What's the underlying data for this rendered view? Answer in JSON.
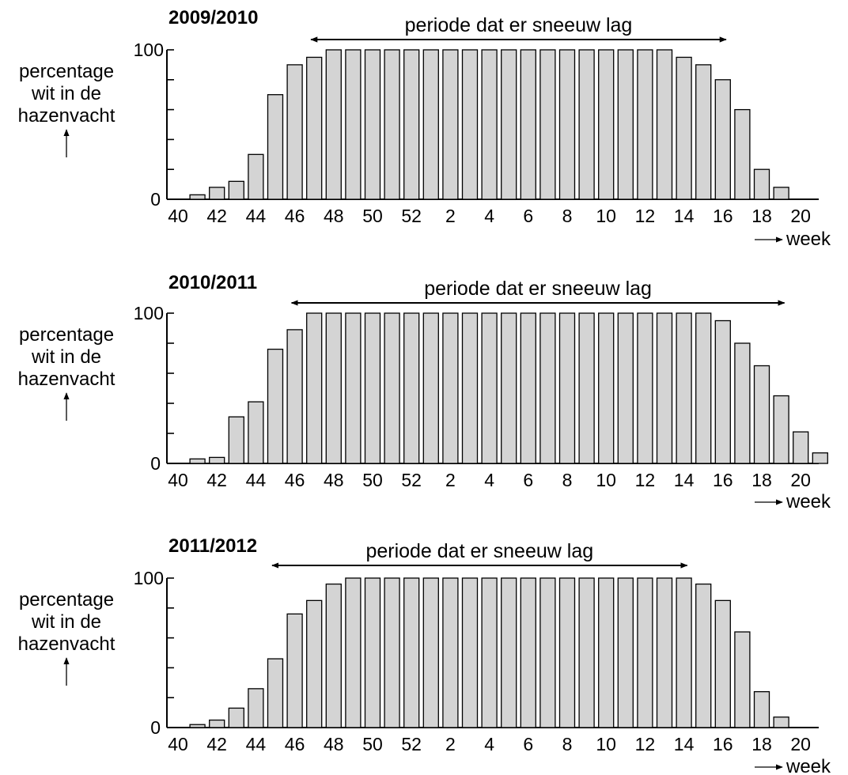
{
  "ylabel_lines": [
    "percentage",
    "wit in de",
    "hazenvacht"
  ],
  "xunit": "week",
  "snow_label": "periode dat er sneeuw lag",
  "x_tick_labels": [
    "40",
    "42",
    "44",
    "46",
    "48",
    "50",
    "52",
    "2",
    "4",
    "6",
    "8",
    "10",
    "12",
    "14",
    "16",
    "18",
    "20"
  ],
  "y_tick_labels": [
    "0",
    "100"
  ],
  "chart_data": [
    {
      "type": "bar",
      "title": "2009/2010",
      "ylim": [
        0,
        100
      ],
      "categories": [
        "41",
        "42",
        "43",
        "44",
        "45",
        "46",
        "47",
        "48",
        "49",
        "50",
        "51",
        "52",
        "1",
        "2",
        "3",
        "4",
        "5",
        "6",
        "7",
        "8",
        "9",
        "10",
        "11",
        "12",
        "13",
        "14",
        "15",
        "16",
        "17",
        "18",
        "19"
      ],
      "values": [
        3,
        8,
        12,
        30,
        70,
        90,
        95,
        100,
        100,
        100,
        100,
        100,
        100,
        100,
        100,
        100,
        100,
        100,
        100,
        100,
        100,
        100,
        100,
        100,
        100,
        95,
        90,
        80,
        60,
        20,
        8
      ],
      "snow_period": {
        "from": "47",
        "to": "16"
      }
    },
    {
      "type": "bar",
      "title": "2010/2011",
      "ylim": [
        0,
        100
      ],
      "categories": [
        "41",
        "42",
        "43",
        "44",
        "45",
        "46",
        "47",
        "48",
        "49",
        "50",
        "51",
        "52",
        "1",
        "2",
        "3",
        "4",
        "5",
        "6",
        "7",
        "8",
        "9",
        "10",
        "11",
        "12",
        "13",
        "14",
        "15",
        "16",
        "17",
        "18",
        "19",
        "20",
        "21"
      ],
      "values": [
        3,
        4,
        31,
        41,
        76,
        89,
        100,
        100,
        100,
        100,
        100,
        100,
        100,
        100,
        100,
        100,
        100,
        100,
        100,
        100,
        100,
        100,
        100,
        100,
        100,
        100,
        100,
        95,
        80,
        65,
        45,
        21,
        7
      ],
      "snow_period": {
        "from": "46",
        "to": "19"
      }
    },
    {
      "type": "bar",
      "title": "2011/2012",
      "ylim": [
        0,
        100
      ],
      "categories": [
        "41",
        "42",
        "43",
        "44",
        "45",
        "46",
        "47",
        "48",
        "49",
        "50",
        "51",
        "52",
        "1",
        "2",
        "3",
        "4",
        "5",
        "6",
        "7",
        "8",
        "9",
        "10",
        "11",
        "12",
        "13",
        "14",
        "15",
        "16",
        "17",
        "18",
        "19"
      ],
      "values": [
        2,
        5,
        13,
        26,
        46,
        76,
        85,
        96,
        100,
        100,
        100,
        100,
        100,
        100,
        100,
        100,
        100,
        100,
        100,
        100,
        100,
        100,
        100,
        100,
        100,
        100,
        96,
        85,
        64,
        24,
        7
      ],
      "snow_period": {
        "from": "45",
        "to": "14"
      }
    }
  ]
}
